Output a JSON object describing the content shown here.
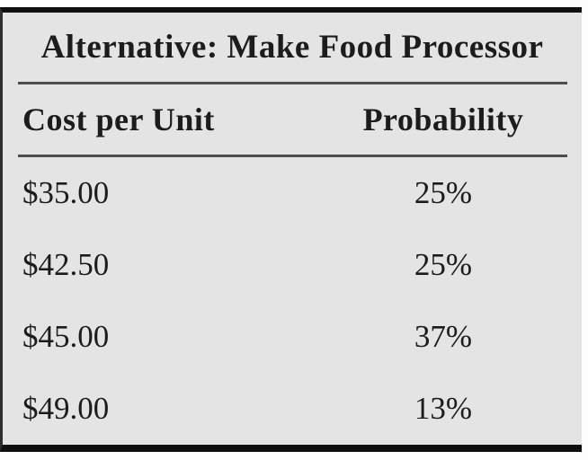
{
  "table": {
    "title": "Alternative: Make Food Processor",
    "columns": [
      {
        "label": "Cost per Unit"
      },
      {
        "label": "Probability"
      }
    ],
    "rows": [
      {
        "cost": "$35.00",
        "probability": "25%"
      },
      {
        "cost": "$42.50",
        "probability": "25%"
      },
      {
        "cost": "$45.00",
        "probability": "37%"
      },
      {
        "cost": "$49.00",
        "probability": "13%"
      }
    ]
  },
  "colors": {
    "table_background": "#e5e4e4",
    "border_black": "#0f0f0f",
    "rule_gray": "#4d4d4d",
    "text": "#1c1c1c",
    "page_background": "#fdfdfd"
  }
}
